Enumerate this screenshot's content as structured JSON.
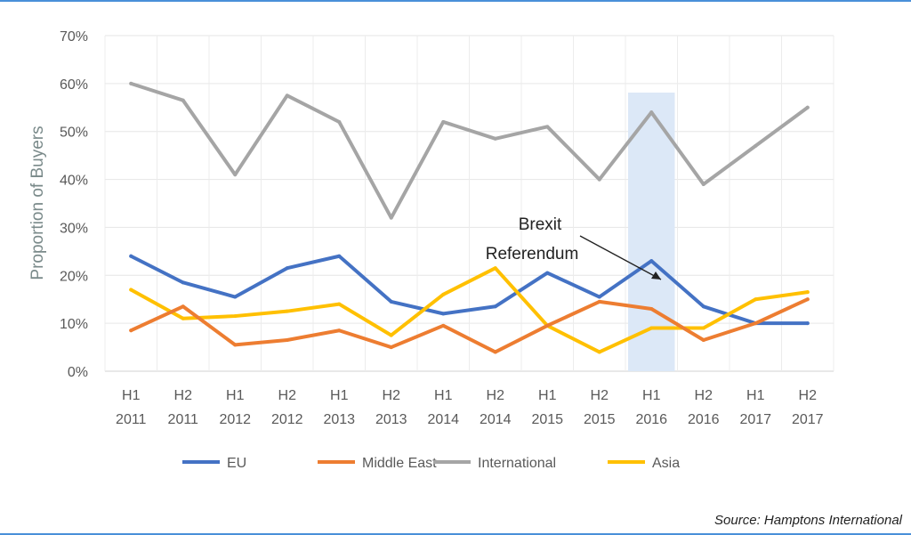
{
  "chart_data": {
    "type": "line",
    "title": "",
    "xlabel": "",
    "ylabel": "Proportion of Buyers",
    "ylim": [
      0,
      70
    ],
    "yticks": [
      "0%",
      "10%",
      "20%",
      "30%",
      "40%",
      "50%",
      "60%",
      "70%"
    ],
    "categories": [
      [
        "H1",
        "2011"
      ],
      [
        "H2",
        "2011"
      ],
      [
        "H1",
        "2012"
      ],
      [
        "H2",
        "2012"
      ],
      [
        "H1",
        "2013"
      ],
      [
        "H2",
        "2013"
      ],
      [
        "H1",
        "2014"
      ],
      [
        "H2",
        "2014"
      ],
      [
        "H1",
        "2015"
      ],
      [
        "H2",
        "2015"
      ],
      [
        "H1",
        "2016"
      ],
      [
        "H2",
        "2016"
      ],
      [
        "H1",
        "2017"
      ],
      [
        "H2",
        "2017"
      ]
    ],
    "series": [
      {
        "name": "EU",
        "color": "#4472c4",
        "values": [
          24,
          18.5,
          15.5,
          21.5,
          24,
          14.5,
          12,
          13.5,
          20.5,
          15.5,
          23,
          13.5,
          10,
          10
        ]
      },
      {
        "name": "Middle East",
        "color": "#ed7d31",
        "values": [
          8.5,
          13.5,
          5.5,
          6.5,
          8.5,
          5,
          9.5,
          4,
          9.5,
          14.5,
          13,
          6.5,
          10,
          15
        ]
      },
      {
        "name": "International",
        "color": "#a5a5a5",
        "values": [
          60,
          56.5,
          41,
          57.5,
          52,
          32,
          52,
          48.5,
          51,
          40,
          54,
          39,
          47,
          55
        ]
      },
      {
        "name": "Asia",
        "color": "#ffc000",
        "values": [
          17,
          11,
          11.5,
          12.5,
          14,
          7.5,
          16,
          21.5,
          9.5,
          4,
          9,
          9,
          15,
          16.5
        ]
      }
    ],
    "highlight": {
      "category_index": 10,
      "color": "#dce8f7"
    },
    "annotation": {
      "lines": [
        "Brexit",
        "Referendum"
      ]
    },
    "legend": "bottom",
    "grid": true
  },
  "source": "Source: Hamptons International"
}
